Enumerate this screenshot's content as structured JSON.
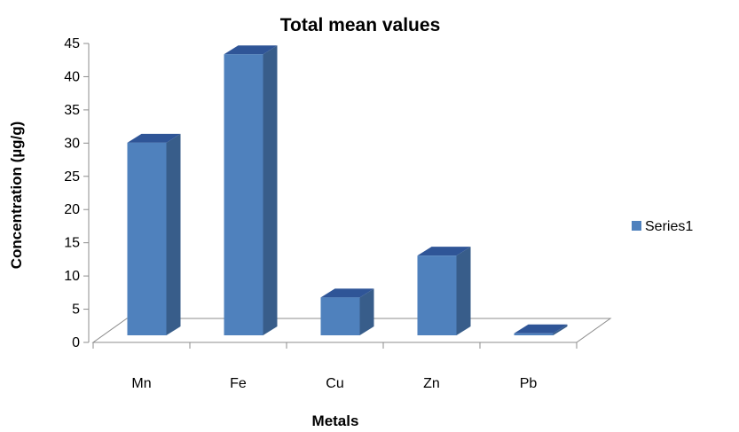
{
  "chart_data": {
    "type": "bar",
    "title": "Total mean values",
    "xlabel": "Metals",
    "ylabel": "Concentration (µg/g)",
    "categories": [
      "Mn",
      "Fe",
      "Cu",
      "Zn",
      "Pb"
    ],
    "series": [
      {
        "name": "Series1",
        "values": [
          29,
          42.3,
          5.7,
          12,
          0.3
        ]
      }
    ],
    "ylim": [
      0,
      45
    ],
    "yticks": [
      0,
      5,
      10,
      15,
      20,
      25,
      30,
      35,
      40,
      45
    ],
    "legend_position": "right",
    "grid": false,
    "colors": {
      "front": "#4f81bd",
      "side": "#385d8a",
      "top": "#2f5597"
    }
  }
}
